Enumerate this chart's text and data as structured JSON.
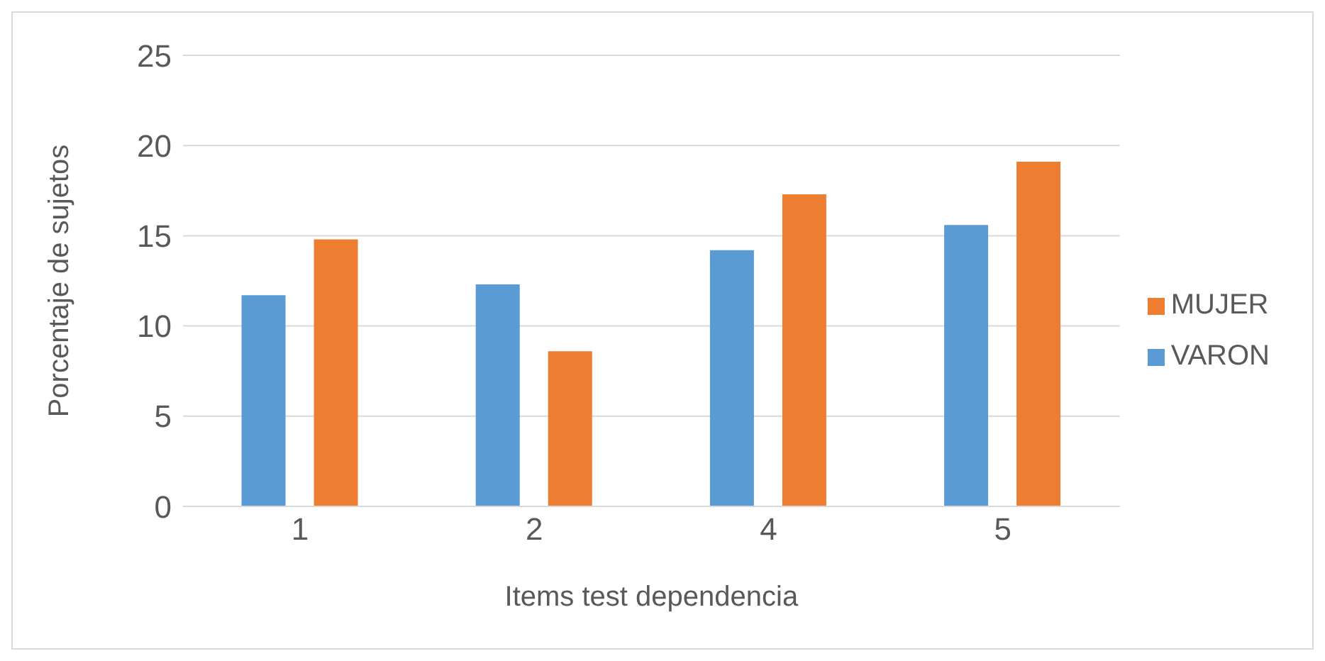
{
  "chart_data": {
    "type": "bar",
    "xlabel": "Items test dependencia",
    "ylabel": "Porcentaje de sujetos",
    "categories": [
      "1",
      "2",
      "4",
      "5"
    ],
    "series": [
      {
        "name": "VARON",
        "color": "#5b9bd5",
        "values": [
          11.7,
          12.3,
          14.2,
          15.6
        ]
      },
      {
        "name": "MUJER",
        "color": "#ed7d31",
        "values": [
          14.8,
          8.6,
          17.3,
          19.1
        ]
      }
    ],
    "ylim": [
      0,
      25
    ],
    "yticks": [
      0,
      5,
      10,
      15,
      20,
      25
    ],
    "grid": "y",
    "legend": "right"
  }
}
